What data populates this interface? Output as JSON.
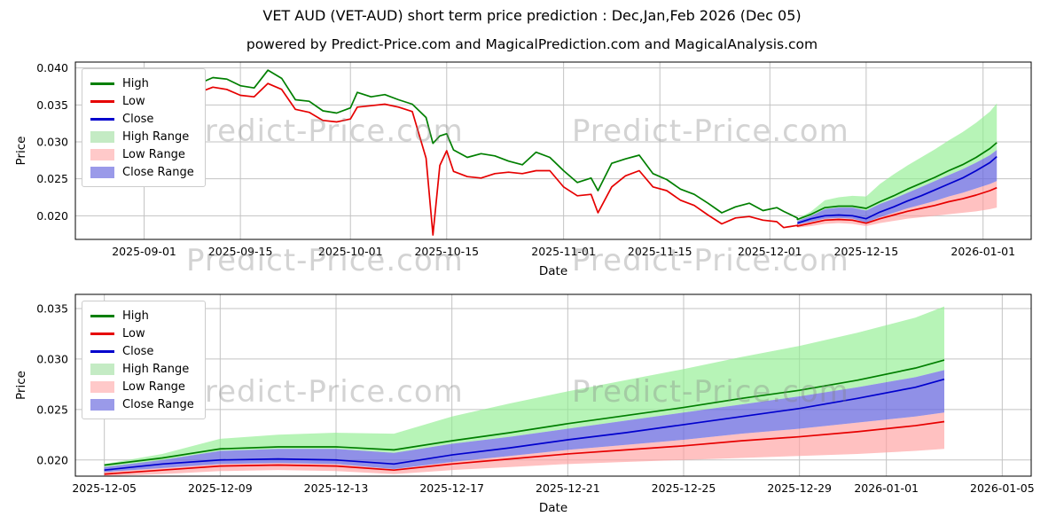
{
  "header": {
    "title": "VET AUD (VET-AUD) short term price prediction : Dec,Jan,Feb 2026 (Dec 05)",
    "subtitle": "powered by Predict-Price.com and MagicalPrediction.com and MagicalAnalysis.com"
  },
  "watermark": "Predict-Price.com",
  "colors": {
    "high_line": "#007f00",
    "low_line": "#e60000",
    "close_line": "#0000cd",
    "high_band": "#90ee90",
    "low_band": "#ff9f9f",
    "close_band": "#6b6bdf",
    "grid": "#c3c3c3",
    "watermark": "#9c9c9c"
  },
  "legend": [
    {
      "label": "High",
      "type": "line",
      "color": "#007f00"
    },
    {
      "label": "Low",
      "type": "line",
      "color": "#e60000"
    },
    {
      "label": "Close",
      "type": "line",
      "color": "#0000cd"
    },
    {
      "label": "High Range",
      "type": "patch",
      "color": "#c4ebc4"
    },
    {
      "label": "Low Range",
      "type": "patch",
      "color": "#ffc9c9"
    },
    {
      "label": "Close Range",
      "type": "patch",
      "color": "#9a9ae9"
    }
  ],
  "chart_data": {
    "type": "line",
    "datasets": {
      "hist_dates": [
        "2025-08-24",
        "2025-08-26",
        "2025-08-28",
        "2025-08-30",
        "2025-09-01",
        "2025-09-03",
        "2025-09-05",
        "2025-09-07",
        "2025-09-09",
        "2025-09-11",
        "2025-09-13",
        "2025-09-15",
        "2025-09-17",
        "2025-09-19",
        "2025-09-21",
        "2025-09-23",
        "2025-09-25",
        "2025-09-27",
        "2025-09-29",
        "2025-10-01",
        "2025-10-02",
        "2025-10-04",
        "2025-10-06",
        "2025-10-08",
        "2025-10-10",
        "2025-10-12",
        "2025-10-13",
        "2025-10-14",
        "2025-10-15",
        "2025-10-16",
        "2025-10-18",
        "2025-10-20",
        "2025-10-22",
        "2025-10-24",
        "2025-10-26",
        "2025-10-28",
        "2025-10-30",
        "2025-11-01",
        "2025-11-03",
        "2025-11-05",
        "2025-11-06",
        "2025-11-08",
        "2025-11-10",
        "2025-11-12",
        "2025-11-14",
        "2025-11-16",
        "2025-11-18",
        "2025-11-20",
        "2025-11-22",
        "2025-11-24",
        "2025-11-26",
        "2025-11-28",
        "2025-11-30",
        "2025-12-02",
        "2025-12-03",
        "2025-12-05"
      ],
      "hist_high": [
        0.0392,
        0.0386,
        0.039,
        0.0382,
        0.0381,
        0.0371,
        0.0366,
        0.0374,
        0.0379,
        0.0387,
        0.0385,
        0.0376,
        0.0373,
        0.0397,
        0.0386,
        0.0357,
        0.0355,
        0.0342,
        0.0339,
        0.0346,
        0.0367,
        0.0361,
        0.0364,
        0.0357,
        0.0351,
        0.0333,
        0.0298,
        0.0308,
        0.0311,
        0.0289,
        0.0279,
        0.0284,
        0.0281,
        0.0274,
        0.0269,
        0.0286,
        0.0279,
        0.0261,
        0.0245,
        0.0251,
        0.0234,
        0.0271,
        0.0277,
        0.0282,
        0.0257,
        0.0249,
        0.0236,
        0.0229,
        0.0217,
        0.0204,
        0.0212,
        0.0217,
        0.0207,
        0.0211,
        0.0206,
        0.0197
      ],
      "hist_low": [
        0.038,
        0.0374,
        0.0376,
        0.037,
        0.0372,
        0.036,
        0.0357,
        0.0362,
        0.0367,
        0.0374,
        0.0371,
        0.0363,
        0.0361,
        0.0379,
        0.0371,
        0.0344,
        0.034,
        0.0329,
        0.0327,
        0.0331,
        0.0347,
        0.0349,
        0.0351,
        0.0347,
        0.0341,
        0.0278,
        0.0174,
        0.0268,
        0.0288,
        0.026,
        0.0253,
        0.0251,
        0.0257,
        0.0259,
        0.0257,
        0.0261,
        0.0261,
        0.0239,
        0.0227,
        0.0229,
        0.0204,
        0.0239,
        0.0254,
        0.0261,
        0.0239,
        0.0234,
        0.0221,
        0.0214,
        0.0201,
        0.0189,
        0.0197,
        0.0199,
        0.0194,
        0.0192,
        0.0184,
        0.0187
      ],
      "pred_dates": [
        "2025-12-05",
        "2025-12-07",
        "2025-12-09",
        "2025-12-11",
        "2025-12-13",
        "2025-12-15",
        "2025-12-17",
        "2025-12-19",
        "2025-12-21",
        "2025-12-23",
        "2025-12-25",
        "2025-12-27",
        "2025-12-29",
        "2025-12-31",
        "2026-01-02",
        "2026-01-03"
      ],
      "pred_close": [
        0.019,
        0.0196,
        0.02,
        0.0201,
        0.02,
        0.0196,
        0.0205,
        0.0212,
        0.022,
        0.0227,
        0.0235,
        0.0243,
        0.0251,
        0.0261,
        0.0272,
        0.028
      ],
      "pred_high": [
        0.0195,
        0.0202,
        0.0211,
        0.0213,
        0.0213,
        0.021,
        0.0219,
        0.0227,
        0.0236,
        0.0244,
        0.0252,
        0.0261,
        0.0269,
        0.0279,
        0.0291,
        0.0299
      ],
      "pred_low": [
        0.0186,
        0.019,
        0.0194,
        0.0195,
        0.0194,
        0.019,
        0.0196,
        0.0201,
        0.0206,
        0.021,
        0.0214,
        0.0219,
        0.0223,
        0.0228,
        0.0234,
        0.0238
      ],
      "pred_high_upper": [
        0.0196,
        0.0206,
        0.0221,
        0.0225,
        0.0227,
        0.0226,
        0.0243,
        0.0256,
        0.0268,
        0.0279,
        0.029,
        0.0302,
        0.0313,
        0.0326,
        0.0341,
        0.0352
      ],
      "pred_close_upper": [
        0.0193,
        0.02,
        0.0209,
        0.0211,
        0.0211,
        0.0207,
        0.0216,
        0.0223,
        0.0231,
        0.0239,
        0.0247,
        0.0255,
        0.0263,
        0.0272,
        0.0282,
        0.0289
      ],
      "pred_close_lower": [
        0.0188,
        0.0192,
        0.0196,
        0.0197,
        0.0196,
        0.0191,
        0.0198,
        0.0204,
        0.021,
        0.0215,
        0.022,
        0.0226,
        0.0231,
        0.0237,
        0.0243,
        0.0247
      ],
      "pred_low_lower": [
        0.0184,
        0.0186,
        0.0189,
        0.019,
        0.0189,
        0.0186,
        0.019,
        0.0193,
        0.0196,
        0.0198,
        0.02,
        0.0202,
        0.0204,
        0.0206,
        0.0209,
        0.0211
      ]
    },
    "charts": [
      {
        "name": "history-and-forecast",
        "xlabel": "Date",
        "ylabel": "Price",
        "plot": {
          "l": 85,
          "r": 1163,
          "t": 70,
          "b": 270
        },
        "xlim": [
          "2025-08-22",
          "2026-01-08"
        ],
        "ylim": [
          0.0168,
          0.0408
        ],
        "xticks": [
          "2025-09-01",
          "2025-09-15",
          "2025-10-01",
          "2025-10-15",
          "2025-11-01",
          "2025-11-15",
          "2025-12-01",
          "2025-12-15",
          "2026-01-01"
        ],
        "yticks": [
          0.02,
          0.025,
          0.03,
          0.035,
          0.04
        ],
        "bands": [
          {
            "name": "high-range",
            "x": [
              "pred_dates"
            ],
            "upper": [
              "pred_high_upper"
            ],
            "lower": [
              "pred_close_upper"
            ],
            "color": "#90ee90",
            "opacity": 0.65
          },
          {
            "name": "low-range",
            "x": [
              "pred_dates"
            ],
            "upper": [
              "pred_close_lower"
            ],
            "lower": [
              "pred_low_lower"
            ],
            "color": "#ff9f9f",
            "opacity": 0.65
          },
          {
            "name": "close-range",
            "x": [
              "pred_dates"
            ],
            "upper": [
              "pred_close_upper"
            ],
            "lower": [
              "pred_close_lower"
            ],
            "color": "#6b6bdf",
            "opacity": 0.75
          }
        ],
        "lines": [
          {
            "name": "high",
            "x": [
              "hist_dates",
              "pred_dates"
            ],
            "y": [
              "hist_high",
              "pred_high"
            ],
            "color": "#007f00"
          },
          {
            "name": "low",
            "x": [
              "hist_dates",
              "pred_dates"
            ],
            "y": [
              "hist_low",
              "pred_low"
            ],
            "color": "#e60000"
          },
          {
            "name": "close",
            "x": [
              "pred_dates"
            ],
            "y": [
              "pred_close"
            ],
            "color": "#0000cd"
          }
        ]
      },
      {
        "name": "forecast-detail",
        "xlabel": "Date",
        "ylabel": "Price",
        "plot": {
          "l": 85,
          "r": 1163,
          "t": 332,
          "b": 537
        },
        "xlim": [
          "2025-12-04",
          "2026-01-06"
        ],
        "ylim": [
          0.0184,
          0.0364
        ],
        "xticks": [
          "2025-12-05",
          "2025-12-09",
          "2025-12-13",
          "2025-12-17",
          "2025-12-21",
          "2025-12-25",
          "2025-12-29",
          "2026-01-01",
          "2026-01-05"
        ],
        "yticks": [
          0.02,
          0.025,
          0.03,
          0.035
        ],
        "bands": [
          {
            "name": "high-range",
            "x": [
              "pred_dates"
            ],
            "upper": [
              "pred_high_upper"
            ],
            "lower": [
              "pred_close_upper"
            ],
            "color": "#90ee90",
            "opacity": 0.65
          },
          {
            "name": "low-range",
            "x": [
              "pred_dates"
            ],
            "upper": [
              "pred_close_lower"
            ],
            "lower": [
              "pred_low_lower"
            ],
            "color": "#ff9f9f",
            "opacity": 0.65
          },
          {
            "name": "close-range",
            "x": [
              "pred_dates"
            ],
            "upper": [
              "pred_close_upper"
            ],
            "lower": [
              "pred_close_lower"
            ],
            "color": "#6b6bdf",
            "opacity": 0.75
          }
        ],
        "lines": [
          {
            "name": "high",
            "x": [
              "pred_dates"
            ],
            "y": [
              "pred_high"
            ],
            "color": "#007f00"
          },
          {
            "name": "low",
            "x": [
              "pred_dates"
            ],
            "y": [
              "pred_low"
            ],
            "color": "#e60000"
          },
          {
            "name": "close",
            "x": [
              "pred_dates"
            ],
            "y": [
              "pred_close"
            ],
            "color": "#0000cd"
          }
        ]
      }
    ]
  }
}
